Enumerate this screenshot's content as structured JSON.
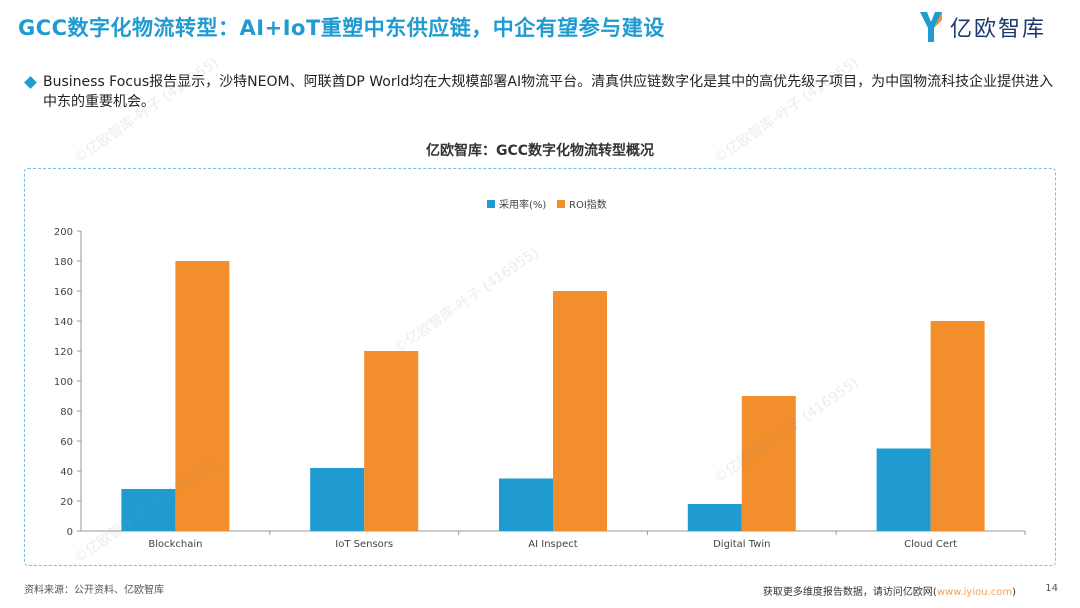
{
  "header": {
    "title": "GCC数字化物流转型：AI+IoT重塑中东供应链，中企有望参与建设",
    "brand": "亿欧智库"
  },
  "bullet": {
    "text": "Business Focus报告显示，沙特NEOM、阿联酋DP World均在大规模部署AI物流平台。清真供应链数字化是其中的高优先级子项目，为中国物流科技企业提供进入中东的重要机会。"
  },
  "chart_title": "亿欧智库：GCC数字化物流转型概况",
  "chart_data": {
    "type": "bar",
    "categories": [
      "Blockchain",
      "IoT Sensors",
      "AI Inspect",
      "Digital Twin",
      "Cloud Cert"
    ],
    "series": [
      {
        "name": "采用率(%)",
        "values": [
          28,
          42,
          35,
          18,
          55
        ],
        "color": "#1f9bd1"
      },
      {
        "name": "ROI指数",
        "values": [
          180,
          120,
          160,
          90,
          140
        ],
        "color": "#f28e2b"
      }
    ],
    "ylim": [
      0,
      200
    ],
    "yticks": [
      0,
      20,
      40,
      60,
      80,
      100,
      120,
      140,
      160,
      180,
      200
    ],
    "legend_position": "top-center",
    "grid": false
  },
  "footer": {
    "source": "资料来源：公开资料、亿欧智库",
    "note_prefix": "获取更多维度报告数据，请访问亿欧网(",
    "link": "www.iyiou.com",
    "note_suffix": ")",
    "page": "14"
  },
  "watermark_text": "©亿欧智库-叶子 (416955)"
}
